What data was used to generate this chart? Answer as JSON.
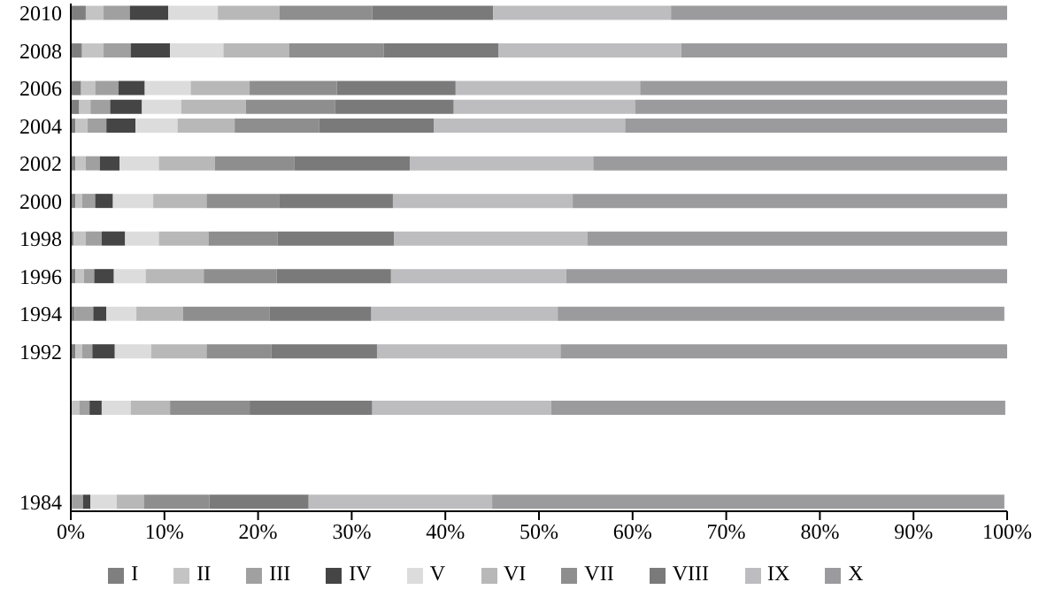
{
  "chart_data": {
    "type": "bar",
    "orientation": "horizontal",
    "stacked": true,
    "legend": "bottom",
    "grid": false,
    "categories": [
      "2010",
      null,
      "2008",
      null,
      "2006",
      null,
      "2004",
      null,
      "2002",
      null,
      "2000",
      null,
      "1998",
      null,
      "1996",
      null,
      "1994",
      null,
      "1992",
      null,
      null,
      null,
      null,
      null,
      null,
      null,
      "1984"
    ],
    "xlim": [
      0,
      100
    ],
    "xticks": [
      {
        "value": 0,
        "label": "0%"
      },
      {
        "value": 10,
        "label": "10%"
      },
      {
        "value": 20,
        "label": "20%"
      },
      {
        "value": 30,
        "label": "30%"
      },
      {
        "value": 40,
        "label": "40%"
      },
      {
        "value": 50,
        "label": "50%"
      },
      {
        "value": 60,
        "label": "60%"
      },
      {
        "value": 70,
        "label": "70%"
      },
      {
        "value": 80,
        "label": "80%"
      },
      {
        "value": 90,
        "label": "90%"
      },
      {
        "value": 100,
        "label": "100%"
      }
    ],
    "series": [
      {
        "name": "I",
        "color": "#7f7f7f",
        "values": [
          1.6,
          null,
          1.2,
          null,
          1.1,
          0.9,
          0.5,
          null,
          0.5,
          null,
          0.5,
          null,
          0.3,
          null,
          0.5,
          null,
          0.4,
          null,
          0.5,
          null,
          null,
          null,
          null,
          null,
          null,
          null,
          0.1
        ]
      },
      {
        "name": "II",
        "color": "#c4c4c4",
        "values": [
          1.9,
          null,
          2.3,
          null,
          1.5,
          1.2,
          1.3,
          null,
          1.1,
          null,
          0.7,
          null,
          1.3,
          null,
          0.9,
          null,
          null,
          null,
          0.7,
          null,
          null,
          0.9,
          null,
          null,
          null,
          null,
          null
        ]
      },
      {
        "name": "III",
        "color": "#a0a0a0",
        "values": [
          2.8,
          null,
          2.9,
          null,
          2.5,
          2.1,
          2.0,
          null,
          1.5,
          null,
          1.4,
          null,
          1.7,
          null,
          1.1,
          null,
          2.0,
          null,
          1.1,
          null,
          null,
          1.1,
          null,
          null,
          null,
          null,
          1.2
        ]
      },
      {
        "name": "IV",
        "color": "#454545",
        "values": [
          4.1,
          null,
          4.2,
          null,
          2.8,
          3.4,
          3.1,
          null,
          2.1,
          null,
          1.9,
          null,
          2.5,
          null,
          2.1,
          null,
          1.4,
          null,
          2.4,
          null,
          null,
          1.3,
          null,
          null,
          null,
          null,
          0.8
        ]
      },
      {
        "name": "V",
        "color": "#dcdcdc",
        "values": [
          5.3,
          null,
          5.7,
          null,
          4.9,
          4.2,
          4.5,
          null,
          4.2,
          null,
          4.3,
          null,
          3.6,
          null,
          3.4,
          null,
          3.2,
          null,
          3.9,
          null,
          null,
          3.1,
          null,
          null,
          null,
          null,
          2.8
        ]
      },
      {
        "name": "VI",
        "color": "#b8b8b8",
        "values": [
          6.6,
          null,
          7.0,
          null,
          6.3,
          6.9,
          6.1,
          null,
          6.0,
          null,
          5.7,
          null,
          5.3,
          null,
          6.2,
          null,
          5.0,
          null,
          5.9,
          null,
          null,
          4.2,
          null,
          null,
          null,
          null,
          2.9
        ]
      },
      {
        "name": "VII",
        "color": "#8e8e8e",
        "values": [
          9.9,
          null,
          10.1,
          null,
          9.3,
          9.5,
          9.0,
          null,
          8.5,
          null,
          7.8,
          null,
          7.4,
          null,
          7.8,
          null,
          9.2,
          null,
          6.9,
          null,
          null,
          8.5,
          null,
          null,
          null,
          null,
          7.0
        ]
      },
      {
        "name": "VIII",
        "color": "#7a7a7a",
        "values": [
          12.9,
          null,
          12.3,
          null,
          12.7,
          12.7,
          12.3,
          null,
          12.3,
          null,
          12.1,
          null,
          12.4,
          null,
          12.2,
          null,
          10.9,
          null,
          11.3,
          null,
          null,
          13.1,
          null,
          null,
          null,
          null,
          10.6
        ]
      },
      {
        "name": "IX",
        "color": "#bdbdbf",
        "values": [
          19.0,
          null,
          19.5,
          null,
          19.7,
          19.4,
          20.4,
          null,
          19.6,
          null,
          19.2,
          null,
          20.7,
          null,
          18.7,
          null,
          19.9,
          null,
          19.6,
          null,
          null,
          19.1,
          null,
          null,
          null,
          null,
          19.6
        ]
      },
      {
        "name": "X",
        "color": "#9b9b9e",
        "values": [
          35.9,
          null,
          34.8,
          null,
          39.2,
          39.7,
          40.8,
          null,
          44.2,
          null,
          46.4,
          null,
          44.8,
          null,
          47.1,
          null,
          47.7,
          null,
          47.7,
          null,
          null,
          48.5,
          null,
          null,
          null,
          null,
          54.7
        ]
      }
    ]
  }
}
